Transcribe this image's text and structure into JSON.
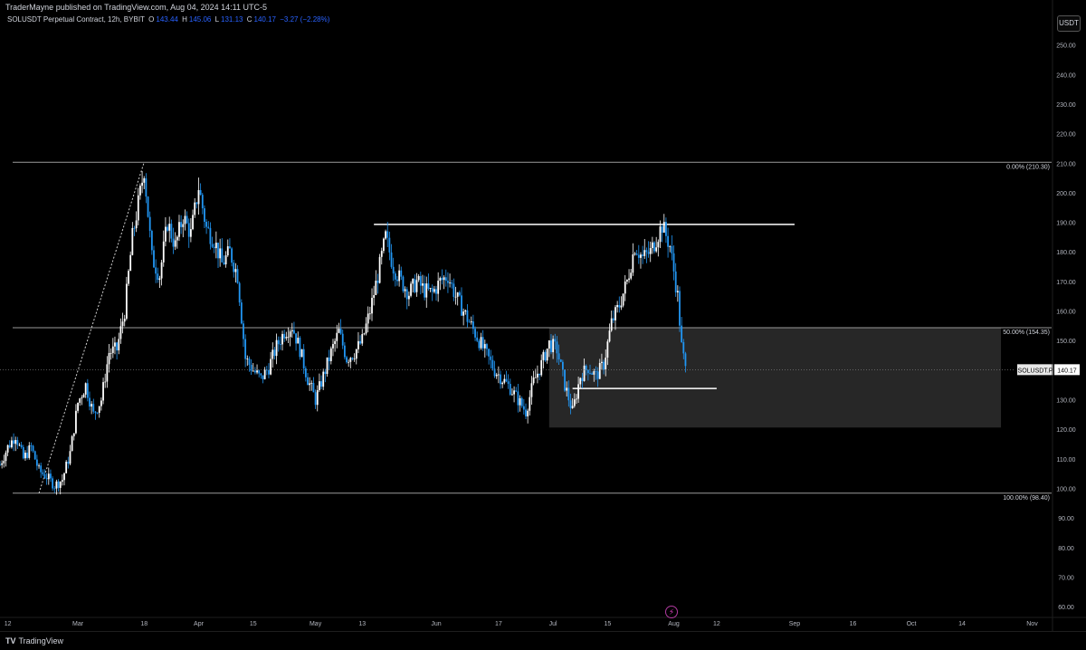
{
  "header": {
    "publish_line": "TraderMayne published on TradingView.com, Aug 04, 2024 14:11 UTC-5",
    "symbol": "SOLUSDT Perpetual Contract, 12h, BYBIT",
    "o_label": "O",
    "o_value": "143.44",
    "h_label": "H",
    "h_value": "145.06",
    "l_label": "L",
    "l_value": "131.13",
    "c_label": "C",
    "c_value": "140.17",
    "change": "−3.27 (−2.28%)"
  },
  "currency": "USDT",
  "footer": {
    "brand": "TradingView"
  },
  "price_tag": {
    "symbol": "SOLUSDT.P",
    "value": "140.17"
  },
  "chart_data": {
    "type": "candlestick",
    "timeframe": "12h",
    "y_axis": {
      "ticks": [
        "60.00",
        "70.00",
        "80.00",
        "90.00",
        "100.00",
        "110.00",
        "120.00",
        "130.00",
        "140.00",
        "150.00",
        "160.00",
        "170.00",
        "180.00",
        "190.00",
        "200.00",
        "210.00",
        "220.00",
        "230.00",
        "240.00",
        "250.00"
      ],
      "range": [
        57,
        256
      ]
    },
    "x_axis": {
      "labels": [
        "12",
        "Mar",
        "18",
        "Apr",
        "15",
        "May",
        "13",
        "Jun",
        "17",
        "Jul",
        "15",
        "Aug",
        "12",
        "Sep",
        "16",
        "Oct",
        "14",
        "Nov"
      ],
      "range": [
        "2024-02-10",
        "2024-11-06"
      ]
    },
    "fib_levels": [
      {
        "label": "0.00% (210.30)",
        "price": 210.3
      },
      {
        "label": "50.00% (154.35)",
        "price": 154.35
      },
      {
        "label": "100.00% (98.40)",
        "price": 98.4
      }
    ],
    "last_price": 140.17,
    "horizontal_lines": [
      {
        "from": "2024-05-16",
        "to": "2024-09-01",
        "price": 189.3
      },
      {
        "from": "2024-07-06",
        "to": "2024-08-12",
        "price": 133.8
      }
    ],
    "zone": {
      "from": "2024-06-30",
      "to": "2024-10-24",
      "top": 154.35,
      "bottom": 120.6
    },
    "trend_line": {
      "from": "2024-02-20",
      "from_price": 98.4,
      "to": "2024-03-18",
      "to_price": 210.3
    },
    "price_path": [
      [
        "2024-02-10",
        108
      ],
      [
        "2024-02-12",
        114
      ],
      [
        "2024-02-14",
        118
      ],
      [
        "2024-02-16",
        110
      ],
      [
        "2024-02-18",
        114
      ],
      [
        "2024-02-20",
        106
      ],
      [
        "2024-02-22",
        104
      ],
      [
        "2024-02-24",
        101
      ],
      [
        "2024-02-26",
        103
      ],
      [
        "2024-02-28",
        112
      ],
      [
        "2024-03-01",
        129
      ],
      [
        "2024-03-03",
        135
      ],
      [
        "2024-03-05",
        125
      ],
      [
        "2024-03-07",
        130
      ],
      [
        "2024-03-09",
        146
      ],
      [
        "2024-03-11",
        147
      ],
      [
        "2024-03-13",
        160
      ],
      [
        "2024-03-15",
        185
      ],
      [
        "2024-03-17",
        200
      ],
      [
        "2024-03-18",
        208
      ],
      [
        "2024-03-20",
        178
      ],
      [
        "2024-03-22",
        172
      ],
      [
        "2024-03-24",
        190
      ],
      [
        "2024-03-26",
        182
      ],
      [
        "2024-03-28",
        192
      ],
      [
        "2024-03-30",
        186
      ],
      [
        "2024-04-01",
        202
      ],
      [
        "2024-04-03",
        188
      ],
      [
        "2024-04-05",
        184
      ],
      [
        "2024-04-07",
        176
      ],
      [
        "2024-04-09",
        180
      ],
      [
        "2024-04-11",
        172
      ],
      [
        "2024-04-13",
        144
      ],
      [
        "2024-04-15",
        140
      ],
      [
        "2024-04-17",
        137
      ],
      [
        "2024-04-19",
        141
      ],
      [
        "2024-04-21",
        148
      ],
      [
        "2024-04-23",
        153
      ],
      [
        "2024-04-25",
        155
      ],
      [
        "2024-04-27",
        147
      ],
      [
        "2024-04-29",
        137
      ],
      [
        "2024-05-01",
        130
      ],
      [
        "2024-05-03",
        138
      ],
      [
        "2024-05-05",
        146
      ],
      [
        "2024-05-07",
        153
      ],
      [
        "2024-05-09",
        144
      ],
      [
        "2024-05-11",
        146
      ],
      [
        "2024-05-13",
        150
      ],
      [
        "2024-05-15",
        160
      ],
      [
        "2024-05-17",
        172
      ],
      [
        "2024-05-19",
        185
      ],
      [
        "2024-05-21",
        175
      ],
      [
        "2024-05-23",
        170
      ],
      [
        "2024-05-25",
        166
      ],
      [
        "2024-05-27",
        170
      ],
      [
        "2024-05-29",
        167
      ],
      [
        "2024-05-31",
        166
      ],
      [
        "2024-06-02",
        170
      ],
      [
        "2024-06-04",
        172
      ],
      [
        "2024-06-06",
        165
      ],
      [
        "2024-06-08",
        160
      ],
      [
        "2024-06-10",
        155
      ],
      [
        "2024-06-12",
        150
      ],
      [
        "2024-06-14",
        145
      ],
      [
        "2024-06-16",
        140
      ],
      [
        "2024-06-18",
        137
      ],
      [
        "2024-06-20",
        134
      ],
      [
        "2024-06-22",
        130
      ],
      [
        "2024-06-24",
        126
      ],
      [
        "2024-06-26",
        136
      ],
      [
        "2024-06-28",
        142
      ],
      [
        "2024-06-30",
        149
      ],
      [
        "2024-07-02",
        147
      ],
      [
        "2024-07-04",
        135
      ],
      [
        "2024-07-06",
        126
      ],
      [
        "2024-07-08",
        138
      ],
      [
        "2024-07-10",
        141
      ],
      [
        "2024-07-12",
        138
      ],
      [
        "2024-07-14",
        142
      ],
      [
        "2024-07-16",
        156
      ],
      [
        "2024-07-18",
        162
      ],
      [
        "2024-07-20",
        170
      ],
      [
        "2024-07-22",
        182
      ],
      [
        "2024-07-24",
        178
      ],
      [
        "2024-07-26",
        180
      ],
      [
        "2024-07-28",
        186
      ],
      [
        "2024-07-29",
        189
      ],
      [
        "2024-07-31",
        182
      ],
      [
        "2024-08-02",
        165
      ],
      [
        "2024-08-03",
        148
      ],
      [
        "2024-08-04",
        140.17
      ]
    ]
  }
}
